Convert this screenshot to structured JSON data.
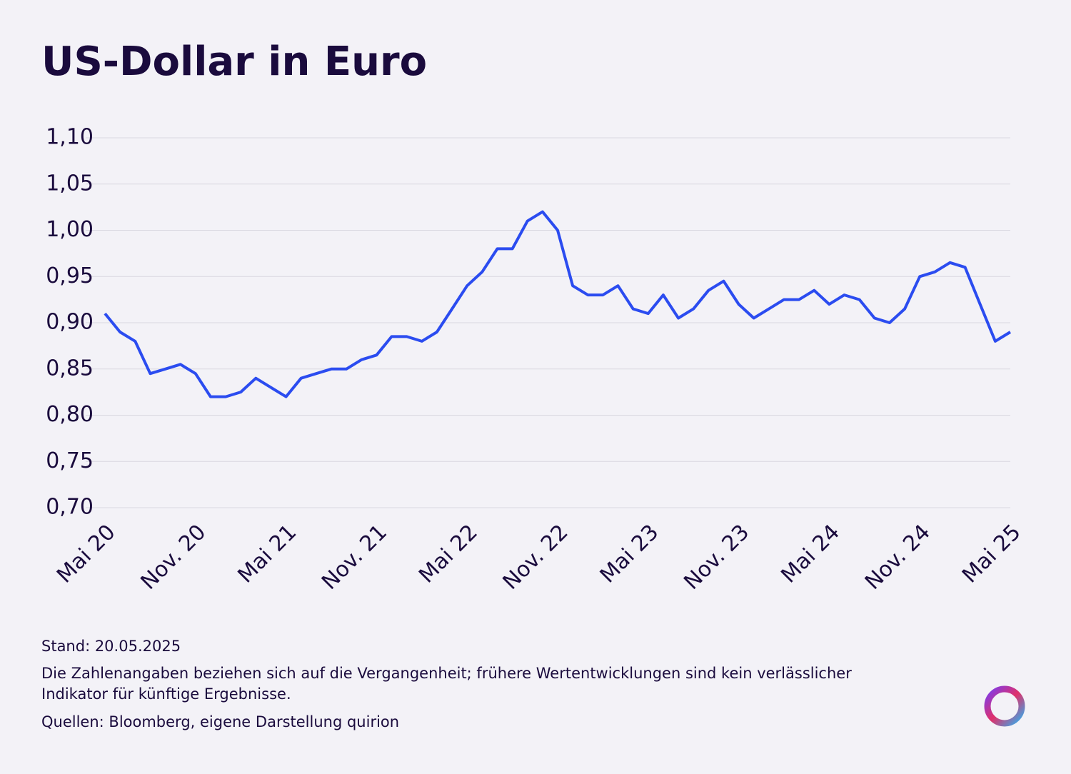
{
  "chart_data": {
    "type": "line",
    "title": "US-Dollar in Euro",
    "categories": [
      "Mai 20",
      null,
      null,
      null,
      null,
      null,
      "Nov. 20",
      null,
      null,
      null,
      null,
      null,
      "Mai 21",
      null,
      null,
      null,
      null,
      null,
      "Nov. 21",
      null,
      null,
      null,
      null,
      null,
      "Mai 22",
      null,
      null,
      null,
      null,
      null,
      "Nov. 22",
      null,
      null,
      null,
      null,
      null,
      "Mai 23",
      null,
      null,
      null,
      null,
      null,
      "Nov. 23",
      null,
      null,
      null,
      null,
      null,
      "Mai 24",
      null,
      null,
      null,
      null,
      null,
      "Nov. 24",
      null,
      null,
      null,
      null,
      null,
      "Mai 25"
    ],
    "series": [
      {
        "name": "US-Dollar in Euro",
        "color": "#2b4cf0",
        "values": [
          0.91,
          0.89,
          0.88,
          0.845,
          0.85,
          0.855,
          0.845,
          0.82,
          0.82,
          0.825,
          0.84,
          0.83,
          0.82,
          0.84,
          0.845,
          0.85,
          0.85,
          0.86,
          0.865,
          0.885,
          0.885,
          0.88,
          0.89,
          0.915,
          0.94,
          0.955,
          0.98,
          0.98,
          1.01,
          1.02,
          1.0,
          0.94,
          0.93,
          0.93,
          0.94,
          0.915,
          0.91,
          0.93,
          0.905,
          0.915,
          0.935,
          0.945,
          0.92,
          0.905,
          0.915,
          0.925,
          0.925,
          0.935,
          0.92,
          0.93,
          0.925,
          0.905,
          0.9,
          0.915,
          0.95,
          0.955,
          0.965,
          0.96,
          0.92,
          0.88,
          0.89
        ]
      }
    ],
    "ylim": [
      0.7,
      1.1
    ],
    "yticks": [
      {
        "value": 0.7,
        "label": "0,70"
      },
      {
        "value": 0.75,
        "label": "0,75"
      },
      {
        "value": 0.8,
        "label": "0,80"
      },
      {
        "value": 0.85,
        "label": "0,85"
      },
      {
        "value": 0.9,
        "label": "0,90"
      },
      {
        "value": 0.95,
        "label": "0,95"
      },
      {
        "value": 1.0,
        "label": "1,00"
      },
      {
        "value": 1.05,
        "label": "1,05"
      },
      {
        "value": 1.1,
        "label": "1,10"
      }
    ],
    "grid": true,
    "footnotes": [
      "Stand: 20.05.2025",
      "Die Zahlenangaben beziehen sich auf die Vergangenheit; frühere Wertentwicklungen sind kein verlässlicher",
      "Indikator für künftige Ergebnisse.",
      "Quellen: Bloomberg, eigene Darstellung quirion"
    ]
  }
}
